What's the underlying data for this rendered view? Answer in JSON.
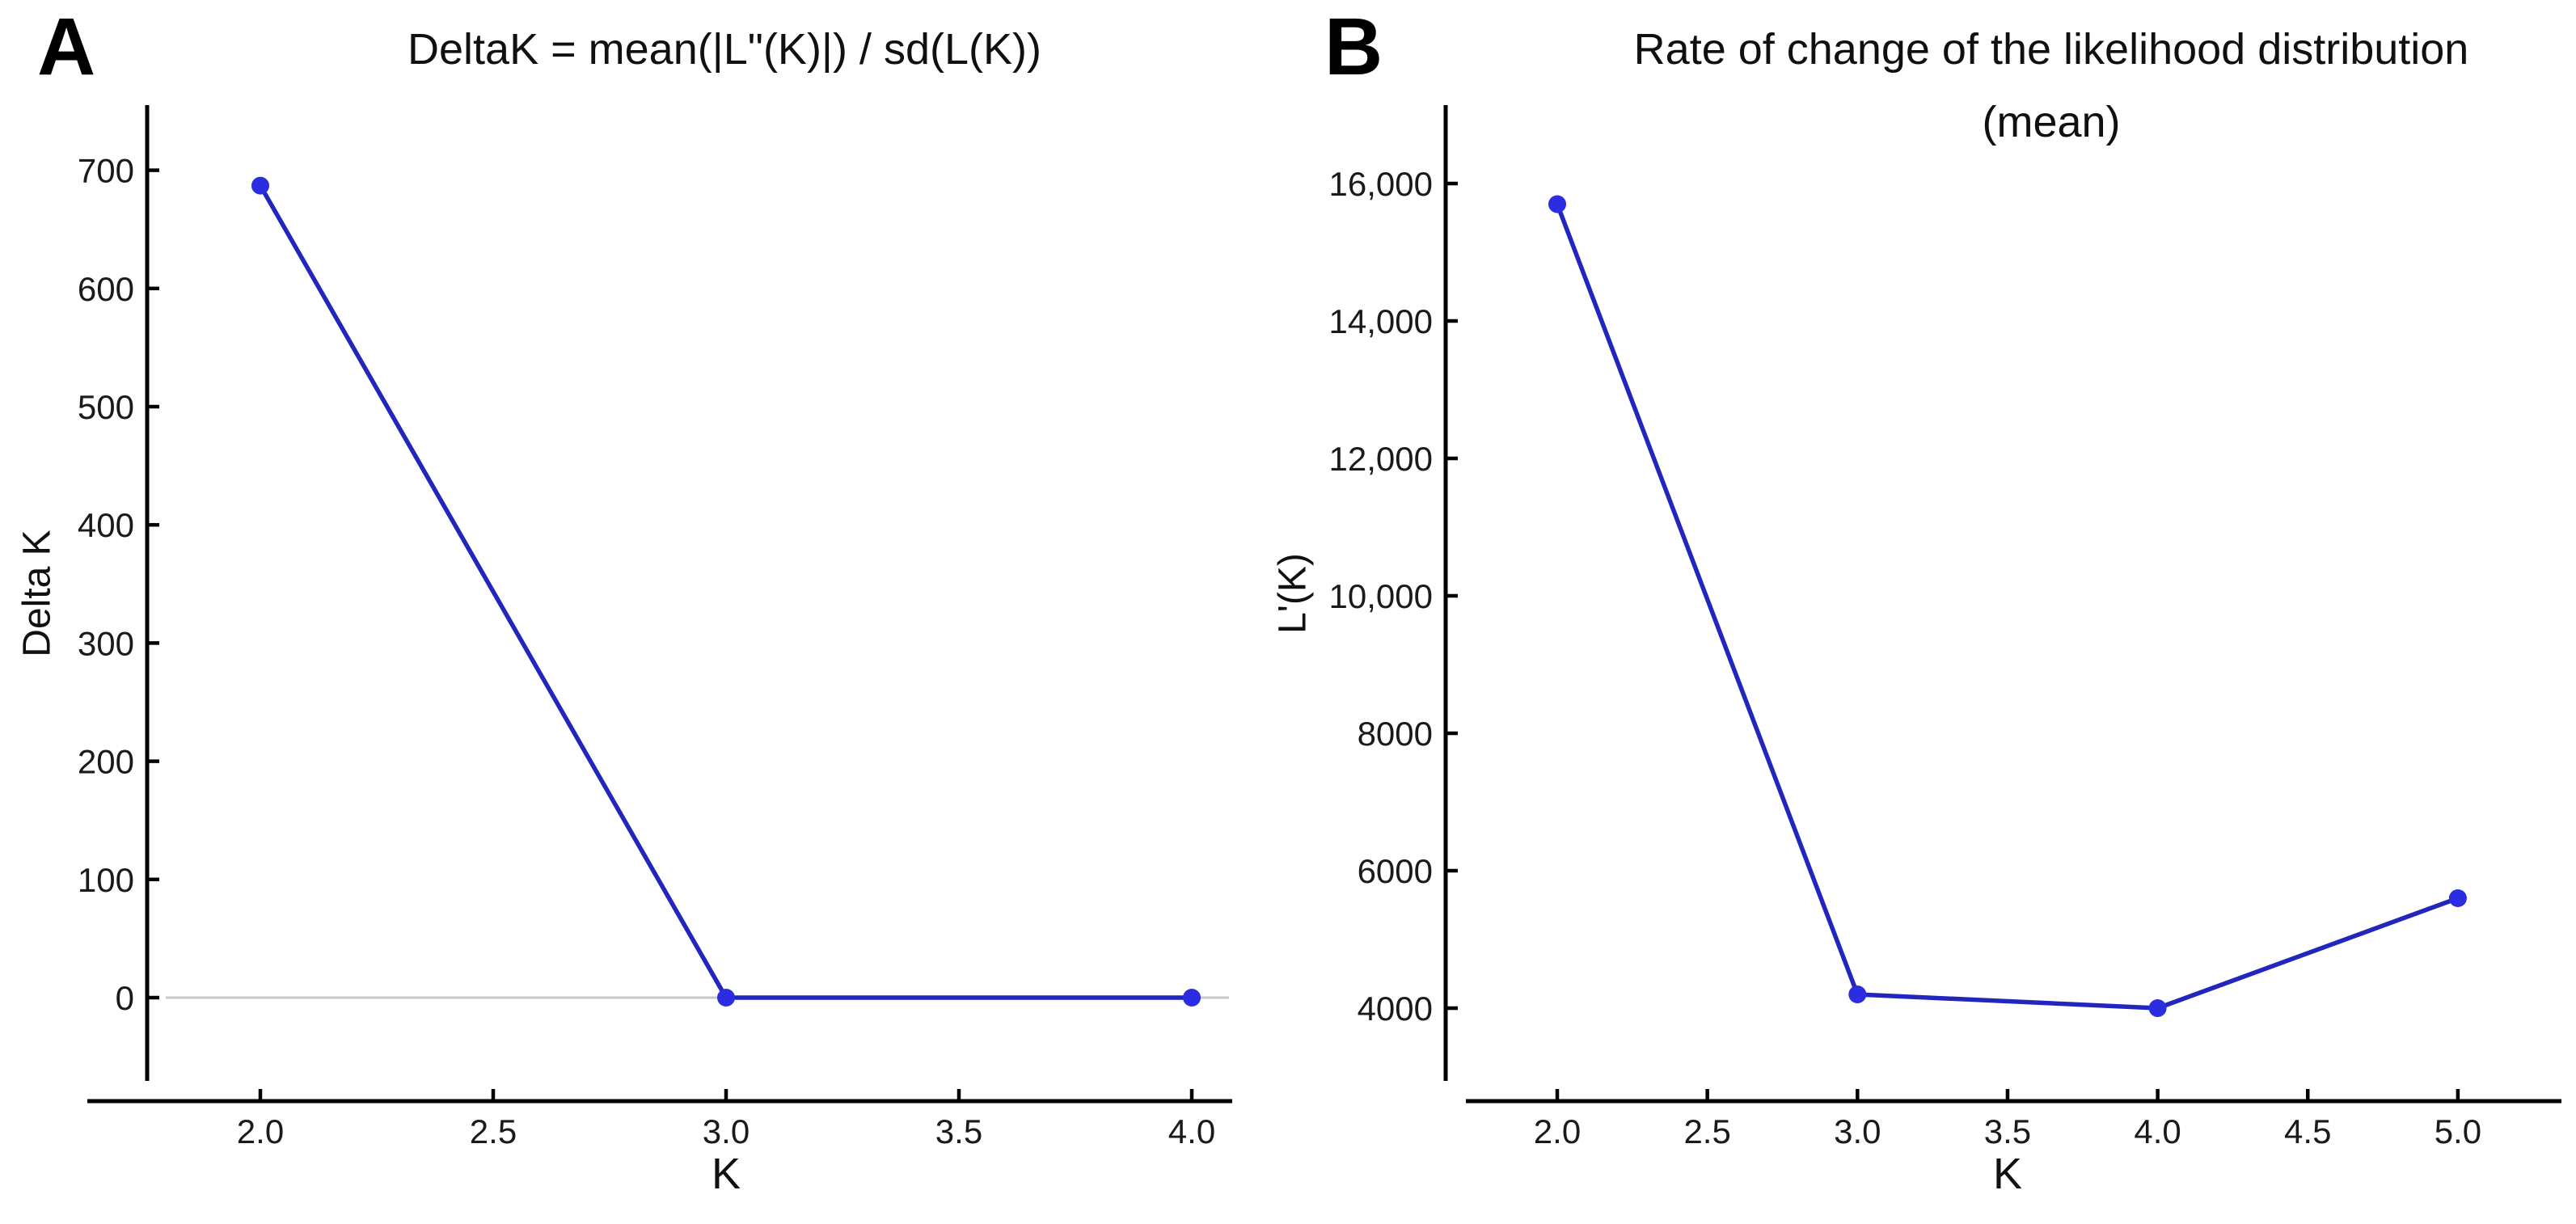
{
  "figure": {
    "background": "#ffffff",
    "panels": [
      {
        "letter": "A",
        "title_lines": [
          "DeltaK = mean(|L\"(K)|) / sd(L(K))"
        ],
        "xlabel": "K",
        "ylabel": "Delta K"
      },
      {
        "letter": "B",
        "title_lines": [
          "Rate of change of the likelihood distribution",
          "(mean)"
        ],
        "xlabel": "K",
        "ylabel": "L'(K)"
      }
    ],
    "colors": {
      "line": "#2326bd",
      "marker": "#2a2de0",
      "axis": "#000000",
      "tick_label": "#1a1a1a",
      "zero_line": "#c8c8c8"
    }
  },
  "chart_data": [
    {
      "type": "line",
      "panel": "A",
      "title": "DeltaK = mean(|L\"(K)|) / sd(L(K))",
      "xlabel": "K",
      "ylabel": "Delta K",
      "x": [
        2,
        3,
        4
      ],
      "y": [
        687,
        0,
        0
      ],
      "xlim": [
        1.8,
        4.1
      ],
      "ylim": [
        -70,
        755
      ],
      "xtick_values": [
        2,
        2.5,
        3,
        3.5,
        4
      ],
      "xtick_labels": [
        "2.0",
        "2.5",
        "3.0",
        "3.5",
        "4.0"
      ],
      "ytick_values": [
        0,
        100,
        200,
        300,
        400,
        500,
        600,
        700
      ],
      "ytick_labels": [
        "0",
        "100",
        "200",
        "300",
        "400",
        "500",
        "600",
        "700"
      ],
      "zero_line": true,
      "grid": false,
      "legend": null
    },
    {
      "type": "line",
      "panel": "B",
      "title": "Rate of change of the likelihood distribution (mean)",
      "xlabel": "K",
      "ylabel": "L'(K)",
      "x": [
        2,
        3,
        4,
        5
      ],
      "y": [
        15700,
        4200,
        4000,
        5600
      ],
      "xlim": [
        1.7,
        5.35
      ],
      "ylim": [
        2900,
        17150
      ],
      "xtick_values": [
        2,
        2.5,
        3,
        3.5,
        4,
        4.5,
        5
      ],
      "xtick_labels": [
        "2.0",
        "2.5",
        "3.0",
        "3.5",
        "4.0",
        "4.5",
        "5.0"
      ],
      "ytick_values": [
        4000,
        6000,
        8000,
        10000,
        12000,
        14000,
        16000
      ],
      "ytick_labels": [
        "4000",
        "6000",
        "8000",
        "10,000",
        "12,000",
        "14,000",
        "16,000"
      ],
      "zero_line": false,
      "grid": false,
      "legend": null
    }
  ]
}
